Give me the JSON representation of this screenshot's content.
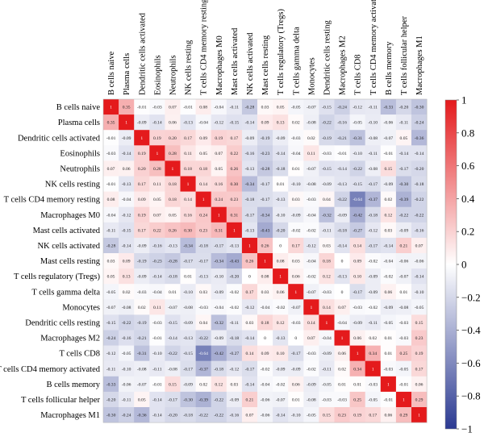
{
  "chart_data": {
    "type": "heatmap",
    "title": "",
    "labels": [
      "B cells naive",
      "Plasma cells",
      "Dendritic cells activated",
      "Eosinophils",
      "Neutrophils",
      "NK cells resting",
      "T cells CD4 memory resting",
      "Macrophages M0",
      "Mast cells activated",
      "NK cells activated",
      "Mast cells resting",
      "T cells regulatory (Tregs)",
      "T cells gamma delta",
      "Monocytes",
      "Dendritic cells resting",
      "Macrophages M2",
      "T cells CD8",
      "T cells CD4 memory activated",
      "B cells memory",
      "T cells follicular helper",
      "Macrophages M1"
    ],
    "matrix": [
      [
        1,
        0.35,
        -0.01,
        -0.03,
        0.07,
        -0.01,
        0.08,
        -0.04,
        -0.11,
        -0.28,
        0.03,
        0.05,
        -0.05,
        -0.07,
        -0.15,
        -0.24,
        -0.12,
        -0.11,
        -0.33,
        -0.2,
        -0.3
      ],
      [
        0.35,
        1,
        -0.09,
        -0.14,
        0.06,
        -0.13,
        -0.04,
        -0.12,
        -0.15,
        -0.14,
        0.09,
        0.13,
        0.02,
        -0.08,
        -0.22,
        -0.16,
        -0.05,
        -0.1,
        -0.06,
        -0.11,
        -0.24
      ],
      [
        -0.01,
        -0.09,
        1,
        0.19,
        0.2,
        0.17,
        0.09,
        0.19,
        0.17,
        -0.09,
        -0.19,
        -0.09,
        -0.03,
        0.02,
        -0.19,
        -0.21,
        -0.31,
        -0.08,
        -0.07,
        0.05,
        -0.36
      ],
      [
        -0.03,
        -0.14,
        0.19,
        1,
        0.28,
        0.11,
        0.05,
        0.07,
        0.22,
        -0.16,
        -0.23,
        -0.14,
        -0.04,
        0.11,
        -0.03,
        -0.01,
        -0.1,
        -0.11,
        -0.01,
        -0.14,
        -0.14
      ],
      [
        0.07,
        0.06,
        0.2,
        0.28,
        1,
        0.18,
        0.18,
        0.05,
        0.26,
        -0.13,
        -0.28,
        -0.18,
        0.01,
        -0.07,
        -0.15,
        -0.14,
        -0.22,
        -0.08,
        0.15,
        -0.17,
        -0.2
      ],
      [
        -0.01,
        -0.13,
        0.17,
        0.11,
        0.18,
        1,
        0.14,
        0.16,
        0.3,
        -0.34,
        -0.17,
        0.01,
        -0.1,
        -0.08,
        -0.09,
        -0.13,
        -0.15,
        -0.17,
        -0.09,
        -0.3,
        -0.18
      ],
      [
        0.08,
        -0.04,
        0.09,
        0.05,
        0.18,
        0.14,
        1,
        0.24,
        0.23,
        -0.18,
        -0.17,
        -0.13,
        0.03,
        -0.03,
        0.04,
        -0.22,
        -0.64,
        -0.37,
        0.02,
        -0.39,
        -0.22
      ],
      [
        -0.04,
        -0.12,
        0.19,
        0.07,
        0.05,
        0.16,
        0.24,
        1,
        0.31,
        -0.17,
        -0.34,
        -0.1,
        -0.09,
        -0.04,
        -0.32,
        -0.09,
        -0.42,
        -0.18,
        0.12,
        -0.22,
        -0.22
      ],
      [
        -0.11,
        -0.15,
        0.17,
        0.22,
        0.26,
        0.3,
        0.23,
        0.31,
        1,
        -0.13,
        -0.43,
        -0.2,
        -0.02,
        -0.02,
        -0.11,
        -0.18,
        -0.27,
        -0.12,
        0.03,
        -0.09,
        -0.16
      ],
      [
        -0.28,
        -0.14,
        -0.09,
        -0.16,
        -0.13,
        -0.34,
        -0.18,
        -0.17,
        -0.13,
        1,
        0.26,
        0,
        0.17,
        -0.12,
        0.03,
        -0.14,
        0.14,
        -0.17,
        -0.14,
        0.21,
        0.07
      ],
      [
        0.03,
        0.09,
        -0.19,
        -0.23,
        -0.28,
        -0.17,
        -0.17,
        -0.34,
        -0.43,
        0.26,
        1,
        0.08,
        0.03,
        -0.04,
        0.18,
        0,
        0.09,
        -0.02,
        -0.04,
        -0.06,
        -0.06
      ],
      [
        0.05,
        0.13,
        -0.09,
        -0.14,
        -0.18,
        0.01,
        -0.13,
        -0.1,
        -0.2,
        0,
        0.08,
        1,
        0.06,
        -0.02,
        0.12,
        -0.13,
        0.1,
        -0.09,
        -0.02,
        -0.07,
        -0.14
      ],
      [
        -0.05,
        0.02,
        -0.03,
        -0.04,
        0.01,
        -0.1,
        0.03,
        -0.09,
        -0.02,
        0.17,
        0.03,
        0.06,
        1,
        -0.07,
        -0.03,
        0,
        -0.17,
        -0.09,
        0.06,
        0.01,
        -0.1
      ],
      [
        -0.07,
        -0.08,
        0.02,
        0.11,
        -0.07,
        -0.08,
        -0.03,
        -0.04,
        -0.02,
        -0.12,
        -0.04,
        -0.02,
        -0.07,
        1,
        0.14,
        0.07,
        -0.03,
        -0.02,
        -0.09,
        -0.08,
        -0.05
      ],
      [
        -0.15,
        -0.22,
        -0.19,
        -0.03,
        -0.15,
        -0.09,
        0.04,
        -0.32,
        -0.11,
        0.03,
        0.18,
        0.12,
        -0.03,
        0.14,
        1,
        -0.04,
        -0.09,
        -0.11,
        -0.05,
        -0.03,
        0.15
      ],
      [
        -0.24,
        -0.16,
        -0.21,
        -0.01,
        -0.14,
        -0.13,
        -0.22,
        -0.09,
        -0.18,
        -0.14,
        0,
        -0.13,
        0,
        0.07,
        -0.04,
        1,
        0.06,
        0.02,
        0.01,
        -0.03,
        0.23
      ],
      [
        -0.12,
        -0.05,
        -0.31,
        -0.1,
        -0.22,
        -0.15,
        -0.64,
        -0.42,
        -0.27,
        0.14,
        0.09,
        0.1,
        -0.17,
        -0.03,
        -0.09,
        0.06,
        1,
        0.34,
        0.01,
        0.25,
        0.19
      ],
      [
        -0.11,
        -0.1,
        -0.08,
        -0.11,
        -0.08,
        -0.17,
        -0.37,
        -0.18,
        -0.12,
        -0.17,
        -0.02,
        -0.09,
        -0.09,
        -0.02,
        -0.11,
        0.02,
        0.34,
        1,
        -0.03,
        -0.05,
        0.17
      ],
      [
        -0.33,
        -0.06,
        -0.07,
        -0.01,
        0.15,
        -0.09,
        0.02,
        0.12,
        0.03,
        -0.14,
        -0.04,
        -0.02,
        0.06,
        -0.09,
        -0.05,
        0.01,
        0.01,
        -0.03,
        1,
        -0.01,
        0.06
      ],
      [
        -0.2,
        -0.11,
        0.05,
        -0.14,
        -0.17,
        -0.3,
        -0.39,
        -0.22,
        -0.09,
        0.21,
        -0.06,
        -0.07,
        0.01,
        -0.08,
        -0.03,
        -0.03,
        0.25,
        -0.05,
        -0.01,
        1,
        0.29
      ],
      [
        -0.3,
        -0.24,
        -0.36,
        -0.14,
        -0.2,
        -0.18,
        -0.22,
        -0.22,
        -0.16,
        0.07,
        -0.06,
        -0.14,
        -0.1,
        -0.05,
        0.15,
        0.23,
        0.19,
        0.17,
        0.06,
        0.29,
        1
      ]
    ],
    "value_range": [
      -1,
      1
    ],
    "colorbar": {
      "ticks": [
        1,
        0.8,
        0.6,
        0.4,
        0.2,
        0,
        -0.2,
        -0.4,
        -0.6,
        -0.8,
        -1
      ],
      "tick_labels": [
        "1",
        "0.8",
        "0.6",
        "0.4",
        "0.2",
        "0",
        "−0.2",
        "−0.4",
        "−0.6",
        "−0.8",
        "−1"
      ],
      "colors": {
        "negative": "#2b3a92",
        "zero": "#ffffff",
        "positive": "#e41a1c"
      }
    },
    "grid": false,
    "legend": "right"
  }
}
